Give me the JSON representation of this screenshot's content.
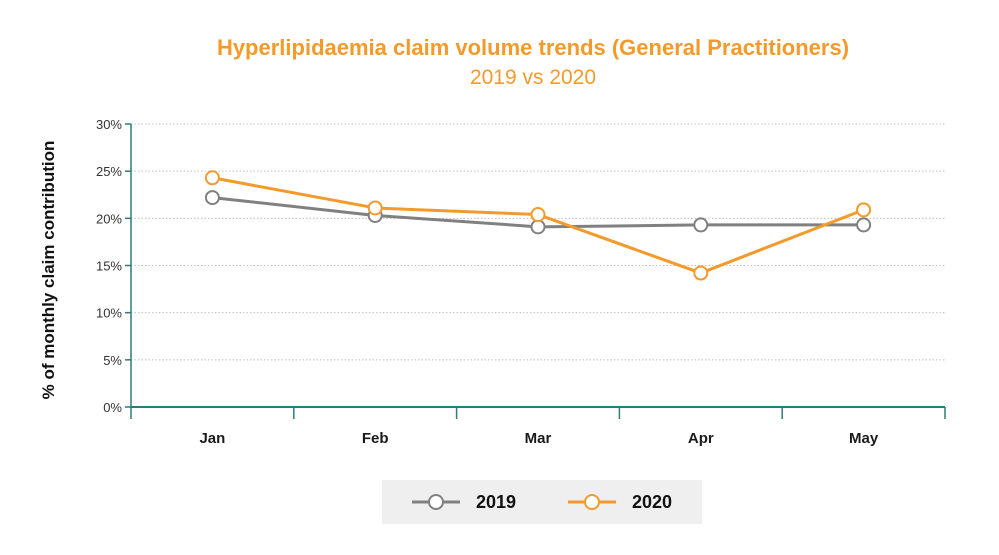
{
  "colors": {
    "accent": "#F39A2B",
    "series_2019": "#808080",
    "series_2020": "#F39A2B",
    "axis": "#2E7B7B",
    "grid": "#BFBFBF",
    "legend_bg": "#EFEFEF"
  },
  "chart_data": {
    "type": "line",
    "title": "Hyperlipidaemia claim volume trends (General Practitioners)",
    "subtitle": "2019 vs 2020",
    "ylabel": "% of monthly claim contribution",
    "xlabel": "",
    "categories": [
      "Jan",
      "Feb",
      "Mar",
      "Apr",
      "May"
    ],
    "ylim": [
      0,
      30
    ],
    "yticks": [
      "0%",
      "5%",
      "10%",
      "15%",
      "20%",
      "25%",
      "30%"
    ],
    "grid": "horizontal dotted",
    "legend_position": "bottom-center",
    "series": [
      {
        "name": "2019",
        "color": "#808080",
        "values": [
          22.2,
          20.3,
          19.1,
          19.3,
          19.3
        ]
      },
      {
        "name": "2020",
        "color": "#F39A2B",
        "values": [
          24.3,
          21.1,
          20.4,
          14.2,
          20.9
        ]
      }
    ]
  }
}
